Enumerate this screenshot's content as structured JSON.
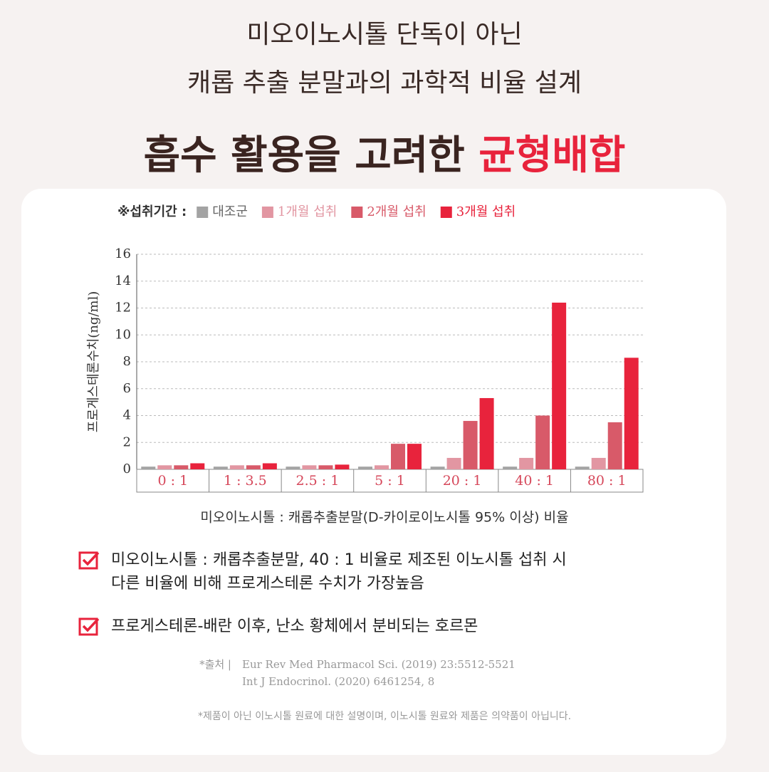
{
  "header": {
    "line1": "미오이노시톨 단독이 아닌",
    "line2": "캐롭 추출 분말과의 과학적 비율 설계",
    "title_main": "흡수 활용을 고려한",
    "title_highlight": "균형배합"
  },
  "chart_data": {
    "type": "bar",
    "legend_title": "※섭취기간 :",
    "y_label": "프로게스테론수치(ng/ml)",
    "x_label": "미오이노시톨 : 캐롭추출분말(D-카이로이노시톨 95% 이상) 비율",
    "categories": [
      "0 : 1",
      "1 : 3.5",
      "2.5 : 1",
      "5 : 1",
      "20 : 1",
      "40 : 1",
      "80 : 1"
    ],
    "series": [
      {
        "name": "대조군",
        "color": "#a3a3a3",
        "values": [
          0.2,
          0.2,
          0.2,
          0.2,
          0.2,
          0.2,
          0.2
        ]
      },
      {
        "name": "1개월 섭취",
        "color": "#e296a2",
        "values": [
          0.3,
          0.3,
          0.3,
          0.3,
          0.85,
          0.85,
          0.85
        ]
      },
      {
        "name": "2개월 섭취",
        "color": "#d85a69",
        "values": [
          0.3,
          0.3,
          0.3,
          1.9,
          3.6,
          4.0,
          3.5
        ]
      },
      {
        "name": "3개월 섭취",
        "color": "#e8233c",
        "values": [
          0.45,
          0.45,
          0.35,
          1.9,
          5.3,
          12.4,
          8.3
        ]
      }
    ],
    "ylim": [
      0,
      16
    ],
    "yticks": [
      0,
      2,
      4,
      6,
      8,
      10,
      12,
      14,
      16
    ],
    "grid": true
  },
  "notes": [
    {
      "lines": [
        "미오이노시톨 : 캐롭추출분말, 40 : 1 비율로 제조된 이노시톨 섭취 시",
        "다른 비율에 비해 프로게스테론 수치가 가장높음"
      ]
    },
    {
      "lines": [
        "프로게스테론-배란 이후, 난소 황체에서 분비되는 호르몬"
      ]
    }
  ],
  "source": {
    "label": "*출처 |",
    "refs": [
      "Eur Rev Med Pharmacol Sci. (2019) 23:5512-5521",
      "Int J Endocrinol. (2020) 6461254, 8"
    ]
  },
  "disclaimer": "*제품이 아닌 이노시톨 원료에 대한 설명이며, 이노시톨 원료와 제품은 의약품이 아닙니다."
}
